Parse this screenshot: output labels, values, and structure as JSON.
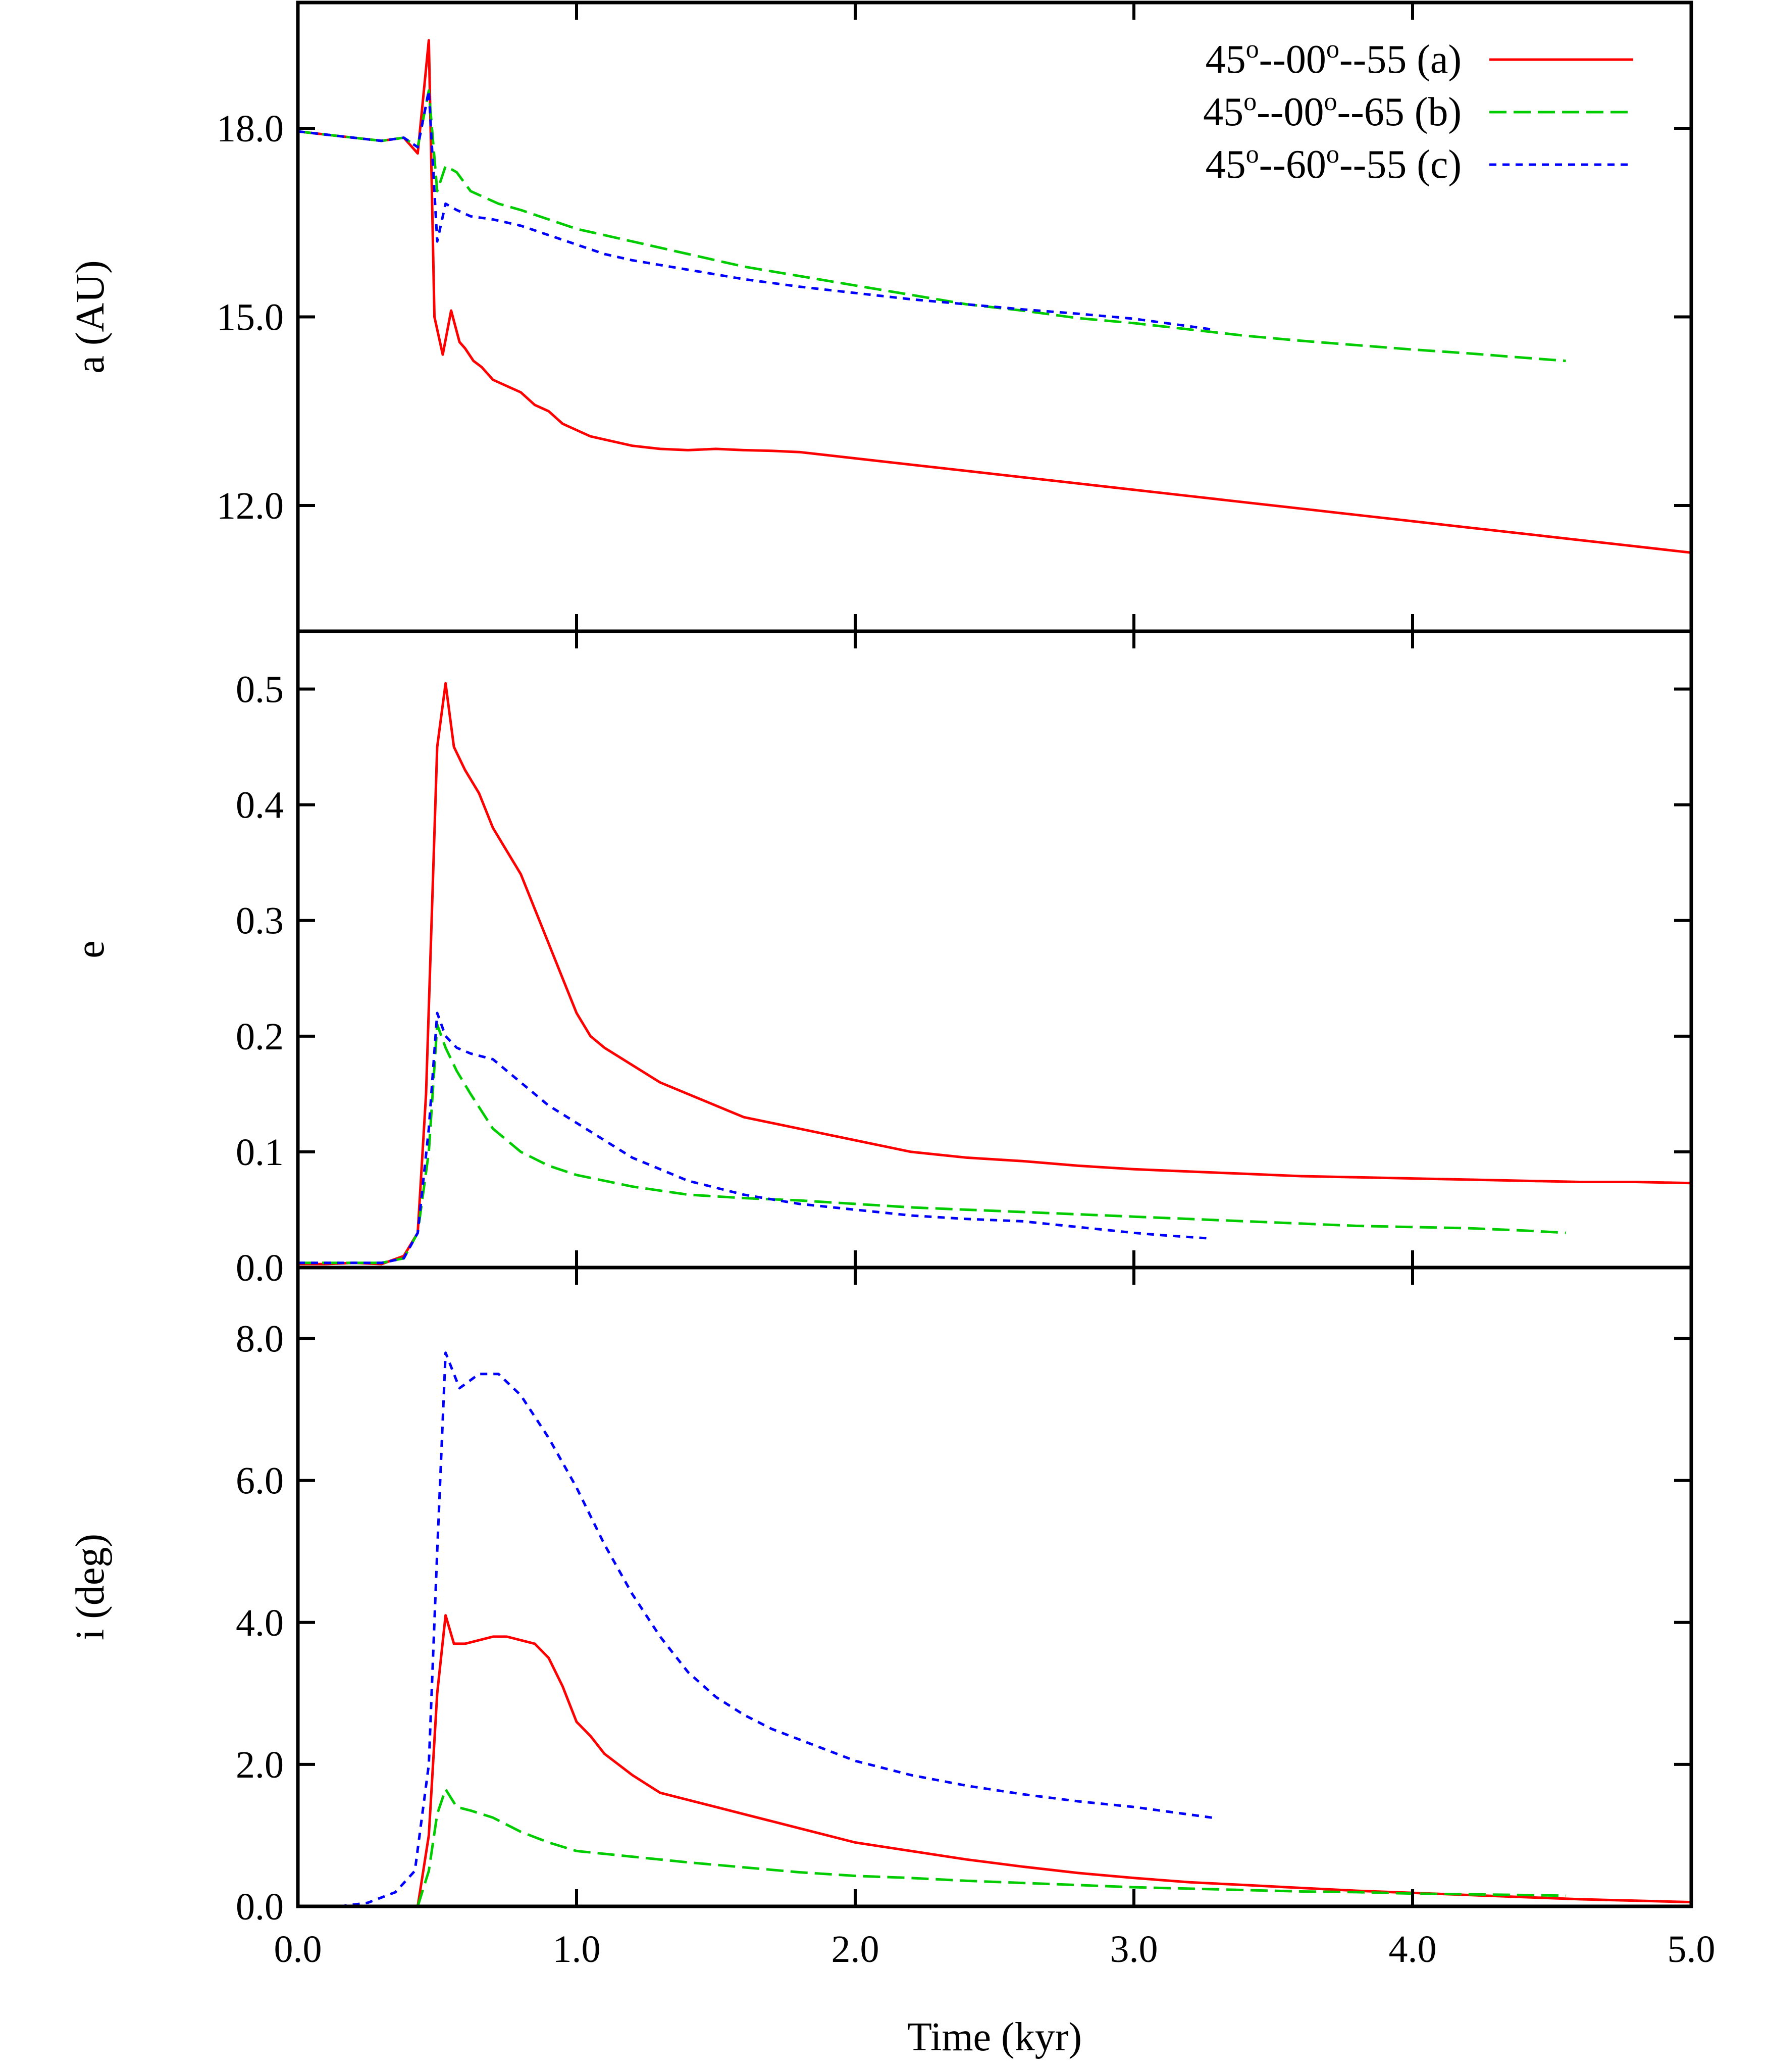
{
  "chart_data": {
    "type": "line",
    "layout": "three vertically stacked panels sharing the x axis",
    "xlabel": "Time (kyr)",
    "xlim": [
      0,
      5
    ],
    "xticks": [
      "0.0",
      "1.0",
      "2.0",
      "3.0",
      "4.0",
      "5.0"
    ],
    "legend": {
      "placement": "top-right",
      "entries": [
        {
          "id": "a",
          "label_parts": [
            "45",
            "o",
            "--00",
            "o",
            "--55 (a)"
          ],
          "color": "#ff0000",
          "dash": "solid"
        },
        {
          "id": "b",
          "label_parts": [
            "45",
            "o",
            "--00",
            "o",
            "--65 (b)"
          ],
          "color": "#00cc00",
          "dash": "dashed"
        },
        {
          "id": "c",
          "label_parts": [
            "45",
            "o",
            "--60",
            "o",
            "--55 (c)"
          ],
          "color": "#0000ff",
          "dash": "dotted"
        }
      ]
    },
    "panels": [
      {
        "id": "a",
        "ylabel": "a (AU)",
        "ylim": [
          10.0,
          20.0
        ],
        "yticks": [
          {
            "value": 12.0,
            "label": "12.0"
          },
          {
            "value": 15.0,
            "label": "15.0"
          },
          {
            "value": 18.0,
            "label": "18.0"
          }
        ],
        "series": [
          {
            "name": "45o--00o--55 (a)",
            "color": "#ff0000",
            "dash": "solid",
            "x": [
              0,
              0.1,
              0.2,
              0.3,
              0.38,
              0.43,
              0.47,
              0.49,
              0.52,
              0.55,
              0.58,
              0.6,
              0.63,
              0.66,
              0.7,
              0.75,
              0.8,
              0.85,
              0.9,
              0.95,
              1.0,
              1.05,
              1.1,
              1.2,
              1.3,
              1.4,
              1.5,
              1.6,
              1.7,
              1.8,
              1.9,
              2.0,
              2.2,
              2.4,
              2.6,
              2.8,
              3.0,
              3.2,
              3.4,
              3.6,
              3.8,
              4.0,
              4.2,
              4.4,
              4.6,
              4.8,
              5.0
            ],
            "y": [
              17.95,
              17.9,
              17.85,
              17.8,
              17.85,
              17.6,
              19.4,
              15.0,
              14.4,
              15.1,
              14.6,
              14.5,
              14.3,
              14.2,
              14.0,
              13.9,
              13.8,
              13.6,
              13.5,
              13.3,
              13.2,
              13.1,
              13.05,
              12.95,
              12.9,
              12.88,
              12.9,
              12.88,
              12.87,
              12.85,
              12.8,
              12.75,
              12.65,
              12.55,
              12.45,
              12.35,
              12.25,
              12.15,
              12.05,
              11.95,
              11.85,
              11.75,
              11.65,
              11.55,
              11.45,
              11.35,
              11.25
            ]
          },
          {
            "name": "45o--00o--65 (b)",
            "color": "#00cc00",
            "dash": "dashed",
            "x": [
              0,
              0.1,
              0.2,
              0.3,
              0.38,
              0.43,
              0.47,
              0.5,
              0.53,
              0.57,
              0.62,
              0.67,
              0.72,
              0.8,
              0.9,
              1.0,
              1.2,
              1.4,
              1.6,
              1.8,
              2.0,
              2.2,
              2.4,
              2.6,
              2.8,
              3.0,
              3.2,
              3.4,
              3.6,
              3.8,
              4.0,
              4.2,
              4.4,
              4.55
            ],
            "y": [
              17.95,
              17.9,
              17.85,
              17.8,
              17.85,
              17.7,
              18.6,
              17.0,
              17.4,
              17.3,
              17.0,
              16.9,
              16.8,
              16.7,
              16.55,
              16.4,
              16.2,
              16.0,
              15.8,
              15.65,
              15.5,
              15.35,
              15.2,
              15.1,
              14.98,
              14.9,
              14.8,
              14.7,
              14.62,
              14.55,
              14.48,
              14.42,
              14.35,
              14.3
            ]
          },
          {
            "name": "45o--60o--55 (c)",
            "color": "#0000ff",
            "dash": "dotted",
            "x": [
              0,
              0.1,
              0.2,
              0.3,
              0.38,
              0.43,
              0.47,
              0.5,
              0.53,
              0.57,
              0.62,
              0.7,
              0.8,
              0.9,
              1.0,
              1.1,
              1.2,
              1.4,
              1.6,
              1.8,
              2.0,
              2.2,
              2.4,
              2.6,
              2.8,
              3.0,
              3.2,
              3.28
            ],
            "y": [
              17.95,
              17.9,
              17.85,
              17.8,
              17.85,
              17.7,
              18.6,
              16.2,
              16.8,
              16.7,
              16.6,
              16.55,
              16.45,
              16.3,
              16.15,
              16.0,
              15.9,
              15.75,
              15.6,
              15.48,
              15.38,
              15.28,
              15.2,
              15.12,
              15.05,
              14.97,
              14.85,
              14.8
            ]
          }
        ]
      },
      {
        "id": "e",
        "ylabel": "e",
        "ylim": [
          0.0,
          0.55
        ],
        "yticks": [
          {
            "value": 0.0,
            "label": "0.0"
          },
          {
            "value": 0.1,
            "label": "0.1"
          },
          {
            "value": 0.2,
            "label": "0.2"
          },
          {
            "value": 0.3,
            "label": "0.3"
          },
          {
            "value": 0.4,
            "label": "0.4"
          },
          {
            "value": 0.5,
            "label": "0.5"
          }
        ],
        "series": [
          {
            "name": "45o--00o--55 (a)",
            "color": "#ff0000",
            "dash": "solid",
            "x": [
              0,
              0.1,
              0.2,
              0.3,
              0.38,
              0.43,
              0.46,
              0.5,
              0.53,
              0.56,
              0.6,
              0.65,
              0.7,
              0.75,
              0.8,
              0.85,
              0.9,
              0.95,
              1.0,
              1.05,
              1.1,
              1.2,
              1.3,
              1.4,
              1.5,
              1.6,
              1.8,
              2.0,
              2.2,
              2.4,
              2.6,
              2.8,
              3.0,
              3.2,
              3.4,
              3.6,
              3.8,
              4.0,
              4.2,
              4.4,
              4.6,
              4.8,
              5.0
            ],
            "y": [
              0.003,
              0.003,
              0.004,
              0.003,
              0.01,
              0.03,
              0.15,
              0.45,
              0.505,
              0.45,
              0.43,
              0.41,
              0.38,
              0.36,
              0.34,
              0.31,
              0.28,
              0.25,
              0.22,
              0.2,
              0.19,
              0.175,
              0.16,
              0.15,
              0.14,
              0.13,
              0.12,
              0.11,
              0.1,
              0.095,
              0.092,
              0.088,
              0.085,
              0.083,
              0.081,
              0.079,
              0.078,
              0.077,
              0.076,
              0.075,
              0.074,
              0.074,
              0.073
            ]
          },
          {
            "name": "45o--00o--65 (b)",
            "color": "#00cc00",
            "dash": "dashed",
            "x": [
              0,
              0.1,
              0.2,
              0.3,
              0.38,
              0.43,
              0.47,
              0.5,
              0.53,
              0.57,
              0.62,
              0.7,
              0.8,
              0.9,
              1.0,
              1.2,
              1.4,
              1.6,
              1.8,
              2.0,
              2.2,
              2.4,
              2.6,
              2.8,
              3.0,
              3.2,
              3.4,
              3.6,
              3.8,
              4.0,
              4.2,
              4.4,
              4.55
            ],
            "y": [
              0.004,
              0.004,
              0.004,
              0.004,
              0.008,
              0.03,
              0.1,
              0.21,
              0.19,
              0.17,
              0.15,
              0.12,
              0.1,
              0.088,
              0.08,
              0.07,
              0.063,
              0.06,
              0.058,
              0.055,
              0.052,
              0.05,
              0.048,
              0.046,
              0.044,
              0.042,
              0.04,
              0.038,
              0.036,
              0.035,
              0.034,
              0.032,
              0.03
            ]
          },
          {
            "name": "45o--60o--55 (c)",
            "color": "#0000ff",
            "dash": "dotted",
            "x": [
              0,
              0.1,
              0.2,
              0.3,
              0.38,
              0.43,
              0.47,
              0.5,
              0.53,
              0.57,
              0.62,
              0.7,
              0.8,
              0.9,
              1.0,
              1.1,
              1.2,
              1.3,
              1.4,
              1.6,
              1.8,
              2.0,
              2.2,
              2.4,
              2.6,
              2.8,
              3.0,
              3.1,
              3.28
            ],
            "y": [
              0.004,
              0.004,
              0.004,
              0.004,
              0.008,
              0.03,
              0.12,
              0.22,
              0.2,
              0.19,
              0.185,
              0.18,
              0.16,
              0.14,
              0.125,
              0.11,
              0.095,
              0.085,
              0.075,
              0.063,
              0.055,
              0.05,
              0.045,
              0.042,
              0.04,
              0.035,
              0.03,
              0.028,
              0.025
            ]
          }
        ]
      },
      {
        "id": "i",
        "ylabel": "i (deg)",
        "ylim": [
          0.0,
          9.0
        ],
        "yticks": [
          {
            "value": 0.0,
            "label": "0.0"
          },
          {
            "value": 2.0,
            "label": "2.0"
          },
          {
            "value": 4.0,
            "label": "4.0"
          },
          {
            "value": 6.0,
            "label": "6.0"
          },
          {
            "value": 8.0,
            "label": "8.0"
          }
        ],
        "series": [
          {
            "name": "45o--00o--55 (a)",
            "color": "#ff0000",
            "dash": "solid",
            "x": [
              0.43,
              0.47,
              0.5,
              0.53,
              0.56,
              0.6,
              0.65,
              0.7,
              0.75,
              0.8,
              0.85,
              0.9,
              0.95,
              1.0,
              1.05,
              1.1,
              1.2,
              1.3,
              1.4,
              1.5,
              1.6,
              1.8,
              2.0,
              2.2,
              2.4,
              2.6,
              2.8,
              3.0,
              3.2,
              3.4,
              3.6,
              3.8,
              4.0,
              4.2,
              4.4,
              4.6,
              4.8,
              5.0
            ],
            "y": [
              0.0,
              1.0,
              3.0,
              4.1,
              3.7,
              3.7,
              3.75,
              3.8,
              3.8,
              3.75,
              3.7,
              3.5,
              3.1,
              2.6,
              2.4,
              2.15,
              1.85,
              1.6,
              1.5,
              1.4,
              1.3,
              1.1,
              0.9,
              0.78,
              0.66,
              0.56,
              0.47,
              0.4,
              0.34,
              0.3,
              0.26,
              0.22,
              0.19,
              0.16,
              0.13,
              0.1,
              0.08,
              0.06
            ]
          },
          {
            "name": "45o--00o--65 (b)",
            "color": "#00cc00",
            "dash": "dashed",
            "x": [
              0.43,
              0.47,
              0.5,
              0.53,
              0.57,
              0.62,
              0.7,
              0.8,
              0.9,
              1.0,
              1.2,
              1.4,
              1.6,
              1.8,
              2.0,
              2.2,
              2.4,
              2.6,
              2.8,
              3.0,
              3.2,
              3.4,
              3.6,
              3.8,
              4.0,
              4.2,
              4.4,
              4.55
            ],
            "y": [
              0.0,
              0.5,
              1.3,
              1.65,
              1.4,
              1.35,
              1.25,
              1.05,
              0.9,
              0.78,
              0.7,
              0.62,
              0.55,
              0.48,
              0.43,
              0.4,
              0.36,
              0.33,
              0.3,
              0.27,
              0.25,
              0.23,
              0.21,
              0.2,
              0.18,
              0.17,
              0.16,
              0.15
            ]
          },
          {
            "name": "45o--60o--55 (c)",
            "color": "#0000ff",
            "dash": "dotted",
            "x": [
              0.15,
              0.25,
              0.35,
              0.42,
              0.47,
              0.5,
              0.53,
              0.58,
              0.65,
              0.72,
              0.8,
              0.9,
              1.0,
              1.1,
              1.2,
              1.3,
              1.4,
              1.5,
              1.6,
              1.7,
              1.8,
              1.9,
              2.0,
              2.2,
              2.4,
              2.6,
              2.8,
              3.0,
              3.28
            ],
            "y": [
              0.0,
              0.05,
              0.2,
              0.5,
              2.0,
              5.0,
              7.8,
              7.3,
              7.5,
              7.5,
              7.2,
              6.6,
              5.9,
              5.1,
              4.4,
              3.8,
              3.3,
              2.95,
              2.7,
              2.5,
              2.35,
              2.2,
              2.05,
              1.85,
              1.7,
              1.58,
              1.48,
              1.4,
              1.25
            ]
          }
        ]
      }
    ]
  }
}
